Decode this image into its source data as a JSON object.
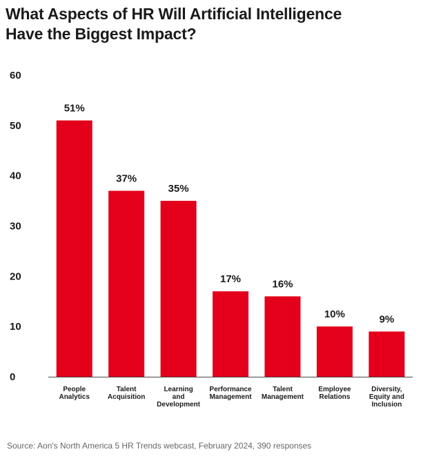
{
  "title_lines": [
    "What Aspects of HR Will Artificial Intelligence",
    "Have the Biggest Impact?"
  ],
  "source": "Source: Aon's North America 5 HR Trends webcast, February 2024, 390 responses",
  "colors": {
    "bar": "#e4001b",
    "axis": "#444444",
    "text": "#1a1a1a"
  },
  "chart_data": {
    "type": "bar",
    "title": "What Aspects of HR Will Artificial Intelligence Have the Biggest Impact?",
    "categories": [
      [
        "People",
        "Analytics"
      ],
      [
        "Talent",
        "Acquisition"
      ],
      [
        "Learning",
        "and",
        "Development"
      ],
      [
        "Performance",
        "Management"
      ],
      [
        "Talent",
        "Management"
      ],
      [
        "Employee",
        "Relations"
      ],
      [
        "Diversity,",
        "Equity and",
        "Inclusion"
      ]
    ],
    "values": [
      51,
      37,
      35,
      17,
      16,
      10,
      9
    ],
    "value_labels": [
      "51%",
      "37%",
      "35%",
      "17%",
      "16%",
      "10%",
      "9%"
    ],
    "yticks": [
      0,
      10,
      20,
      30,
      40,
      50,
      60
    ],
    "ylim": [
      0,
      60
    ],
    "xlabel": "",
    "ylabel": "",
    "grid": false,
    "legend": "none"
  }
}
